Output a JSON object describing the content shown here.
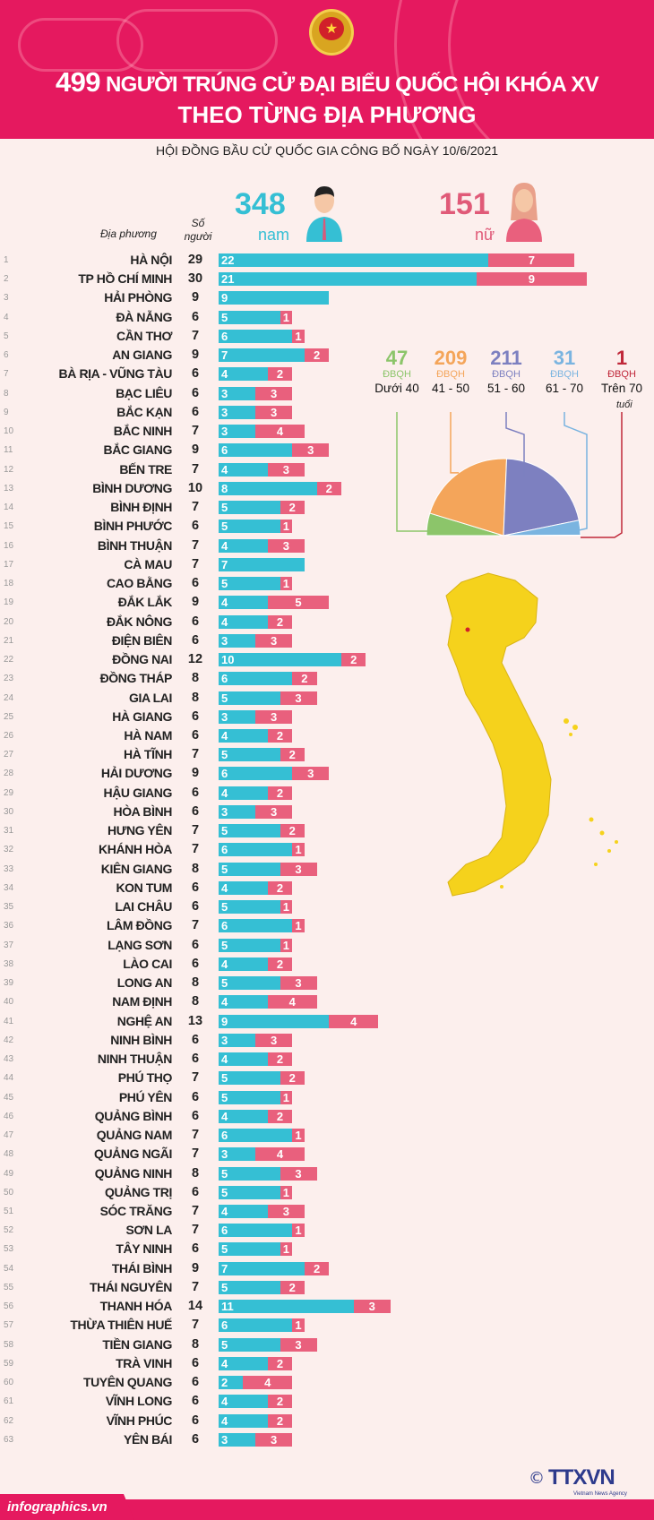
{
  "header": {
    "title_number": "499",
    "title_rest": "NGƯỜI TRÚNG CỬ ĐẠI BIỂU QUỐC HỘI KHÓA XV",
    "title_line2": "THEO TỪNG ĐỊA PHƯƠNG",
    "subtitle": "HỘI ĐỒNG BẦU CỬ QUỐC GIA CÔNG BỐ NGÀY 10/6/2021"
  },
  "gender": {
    "male_count": "348",
    "male_label": "nam",
    "female_count": "151",
    "female_label": "nữ"
  },
  "table_headers": {
    "place": "Địa phương",
    "count": "Số người"
  },
  "colors": {
    "male": "#35bfd4",
    "female": "#e9607d",
    "header": "#e5195f"
  },
  "chart_data": {
    "type": "bar",
    "stacked": true,
    "series": [
      {
        "name": "nam"
      },
      {
        "name": "nữ"
      }
    ],
    "rows": [
      {
        "i": "1",
        "name": "HÀ NỘI",
        "total": "29",
        "male": 22,
        "female": 7
      },
      {
        "i": "2",
        "name": "TP HỒ CHÍ MINH",
        "total": "30",
        "male": 21,
        "female": 9
      },
      {
        "i": "3",
        "name": "HẢI PHÒNG",
        "total": "9",
        "male": 9,
        "female": 0
      },
      {
        "i": "4",
        "name": "ĐÀ NẴNG",
        "total": "6",
        "male": 5,
        "female": 1
      },
      {
        "i": "5",
        "name": "CẦN THƠ",
        "total": "7",
        "male": 6,
        "female": 1
      },
      {
        "i": "6",
        "name": "AN GIANG",
        "total": "9",
        "male": 7,
        "female": 2
      },
      {
        "i": "7",
        "name": "BÀ RỊA - VŨNG TÀU",
        "total": "6",
        "male": 4,
        "female": 2
      },
      {
        "i": "8",
        "name": "BẠC LIÊU",
        "total": "6",
        "male": 3,
        "female": 3
      },
      {
        "i": "9",
        "name": "BẮC KẠN",
        "total": "6",
        "male": 3,
        "female": 3
      },
      {
        "i": "10",
        "name": "BẮC NINH",
        "total": "7",
        "male": 3,
        "female": 4
      },
      {
        "i": "11",
        "name": "BẮC GIANG",
        "total": "9",
        "male": 6,
        "female": 3
      },
      {
        "i": "12",
        "name": "BẾN TRE",
        "total": "7",
        "male": 4,
        "female": 3
      },
      {
        "i": "13",
        "name": "BÌNH DƯƠNG",
        "total": "10",
        "male": 8,
        "female": 2
      },
      {
        "i": "14",
        "name": "BÌNH ĐỊNH",
        "total": "7",
        "male": 5,
        "female": 2
      },
      {
        "i": "15",
        "name": "BÌNH PHƯỚC",
        "total": "6",
        "male": 5,
        "female": 1
      },
      {
        "i": "16",
        "name": "BÌNH THUẬN",
        "total": "7",
        "male": 4,
        "female": 3
      },
      {
        "i": "17",
        "name": "CÀ MAU",
        "total": "7",
        "male": 7,
        "female": 0
      },
      {
        "i": "18",
        "name": "CAO BẰNG",
        "total": "6",
        "male": 5,
        "female": 1
      },
      {
        "i": "19",
        "name": "ĐẮK LẮK",
        "total": "9",
        "male": 4,
        "female": 5
      },
      {
        "i": "20",
        "name": "ĐẮK NÔNG",
        "total": "6",
        "male": 4,
        "female": 2
      },
      {
        "i": "21",
        "name": "ĐIỆN BIÊN",
        "total": "6",
        "male": 3,
        "female": 3
      },
      {
        "i": "22",
        "name": "ĐỒNG NAI",
        "total": "12",
        "male": 10,
        "female": 2
      },
      {
        "i": "23",
        "name": "ĐỒNG THÁP",
        "total": "8",
        "male": 6,
        "female": 2
      },
      {
        "i": "24",
        "name": "GIA LAI",
        "total": "8",
        "male": 5,
        "female": 3
      },
      {
        "i": "25",
        "name": "HÀ GIANG",
        "total": "6",
        "male": 3,
        "female": 3
      },
      {
        "i": "26",
        "name": "HÀ NAM",
        "total": "6",
        "male": 4,
        "female": 2
      },
      {
        "i": "27",
        "name": "HÀ TĨNH",
        "total": "7",
        "male": 5,
        "female": 2
      },
      {
        "i": "28",
        "name": "HẢI DƯƠNG",
        "total": "9",
        "male": 6,
        "female": 3
      },
      {
        "i": "29",
        "name": "HẬU GIANG",
        "total": "6",
        "male": 4,
        "female": 2
      },
      {
        "i": "30",
        "name": "HÒA BÌNH",
        "total": "6",
        "male": 3,
        "female": 3
      },
      {
        "i": "31",
        "name": "HƯNG YÊN",
        "total": "7",
        "male": 5,
        "female": 2
      },
      {
        "i": "32",
        "name": "KHÁNH HÒA",
        "total": "7",
        "male": 6,
        "female": 1
      },
      {
        "i": "33",
        "name": "KIÊN GIANG",
        "total": "8",
        "male": 5,
        "female": 3
      },
      {
        "i": "34",
        "name": "KON TUM",
        "total": "6",
        "male": 4,
        "female": 2
      },
      {
        "i": "35",
        "name": "LAI CHÂU",
        "total": "6",
        "male": 5,
        "female": 1
      },
      {
        "i": "36",
        "name": "LÂM ĐỒNG",
        "total": "7",
        "male": 6,
        "female": 1
      },
      {
        "i": "37",
        "name": "LẠNG SƠN",
        "total": "6",
        "male": 5,
        "female": 1
      },
      {
        "i": "38",
        "name": "LÀO CAI",
        "total": "6",
        "male": 4,
        "female": 2
      },
      {
        "i": "39",
        "name": "LONG AN",
        "total": "8",
        "male": 5,
        "female": 3
      },
      {
        "i": "40",
        "name": "NAM ĐỊNH",
        "total": "8",
        "male": 4,
        "female": 4
      },
      {
        "i": "41",
        "name": "NGHỆ AN",
        "total": "13",
        "male": 9,
        "female": 4
      },
      {
        "i": "42",
        "name": "NINH BÌNH",
        "total": "6",
        "male": 3,
        "female": 3
      },
      {
        "i": "43",
        "name": "NINH THUẬN",
        "total": "6",
        "male": 4,
        "female": 2
      },
      {
        "i": "44",
        "name": "PHÚ THỌ",
        "total": "7",
        "male": 5,
        "female": 2
      },
      {
        "i": "45",
        "name": "PHÚ YÊN",
        "total": "6",
        "male": 5,
        "female": 1
      },
      {
        "i": "46",
        "name": "QUẢNG BÌNH",
        "total": "6",
        "male": 4,
        "female": 2
      },
      {
        "i": "47",
        "name": "QUẢNG NAM",
        "total": "7",
        "male": 6,
        "female": 1
      },
      {
        "i": "48",
        "name": "QUẢNG NGÃI",
        "total": "7",
        "male": 3,
        "female": 4
      },
      {
        "i": "49",
        "name": "QUẢNG NINH",
        "total": "8",
        "male": 5,
        "female": 3
      },
      {
        "i": "50",
        "name": "QUẢNG TRỊ",
        "total": "6",
        "male": 5,
        "female": 1
      },
      {
        "i": "51",
        "name": "SÓC TRĂNG",
        "total": "7",
        "male": 4,
        "female": 3
      },
      {
        "i": "52",
        "name": "SƠN LA",
        "total": "7",
        "male": 6,
        "female": 1
      },
      {
        "i": "53",
        "name": "TÂY NINH",
        "total": "6",
        "male": 5,
        "female": 1
      },
      {
        "i": "54",
        "name": "THÁI BÌNH",
        "total": "9",
        "male": 7,
        "female": 2
      },
      {
        "i": "55",
        "name": "THÁI NGUYÊN",
        "total": "7",
        "male": 5,
        "female": 2
      },
      {
        "i": "56",
        "name": "THANH HÓA",
        "total": "14",
        "male": 11,
        "female": 3
      },
      {
        "i": "57",
        "name": "THỪA THIÊN HUẾ",
        "total": "7",
        "male": 6,
        "female": 1
      },
      {
        "i": "58",
        "name": "TIỀN GIANG",
        "total": "8",
        "male": 5,
        "female": 3
      },
      {
        "i": "59",
        "name": "TRÀ VINH",
        "total": "6",
        "male": 4,
        "female": 2
      },
      {
        "i": "60",
        "name": "TUYÊN QUANG",
        "total": "6",
        "male": 2,
        "female": 4
      },
      {
        "i": "61",
        "name": "VĨNH LONG",
        "total": "6",
        "male": 4,
        "female": 2
      },
      {
        "i": "62",
        "name": "VĨNH PHÚC",
        "total": "6",
        "male": 4,
        "female": 2
      },
      {
        "i": "63",
        "name": "YÊN BÁI",
        "total": "6",
        "male": 3,
        "female": 3
      }
    ]
  },
  "age_chart": {
    "type": "pie",
    "shape": "semicircle",
    "unit": "ĐBQH",
    "suffix": "tuổi",
    "groups": [
      {
        "value": 47,
        "label": "Dưới 40",
        "color": "#8cc56a"
      },
      {
        "value": 209,
        "label": "41 - 50",
        "color": "#f4a55a"
      },
      {
        "value": 211,
        "label": "51 - 60",
        "color": "#7d80c0"
      },
      {
        "value": 31,
        "label": "61 - 70",
        "color": "#7ab4e0"
      },
      {
        "value": 1,
        "label": "Trên 70",
        "color": "#c0283a"
      }
    ]
  },
  "footer": {
    "site": "infographics.vn",
    "logo": "TTXVN",
    "copyright": "©",
    "agency": "Vietnam News Agency"
  }
}
